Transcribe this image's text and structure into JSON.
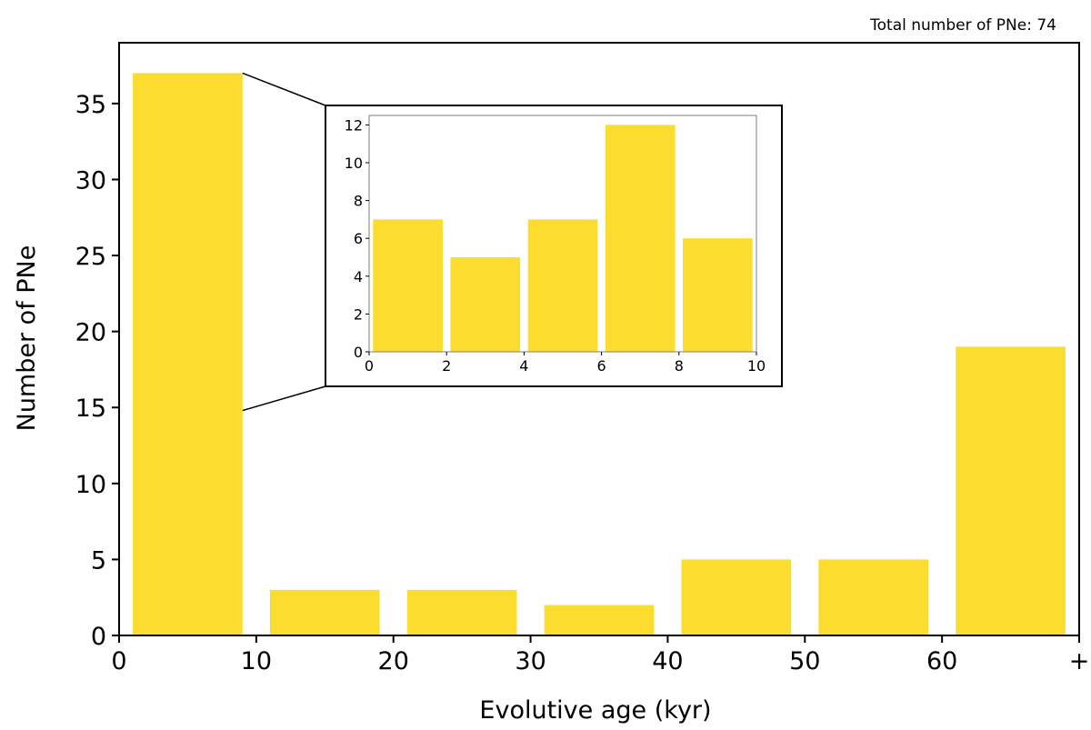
{
  "annotation": "Total number of PNe: 74",
  "chart_data": [
    {
      "type": "bar",
      "role": "main",
      "xlabel": "Evolutive age (kyr)",
      "ylabel": "Number of PNe",
      "bins": [
        {
          "x0": 0,
          "x1": 10,
          "value": 37
        },
        {
          "x0": 10,
          "x1": 20,
          "value": 3
        },
        {
          "x0": 20,
          "x1": 30,
          "value": 3
        },
        {
          "x0": 30,
          "x1": 40,
          "value": 2
        },
        {
          "x0": 40,
          "x1": 50,
          "value": 5
        },
        {
          "x0": 50,
          "x1": 60,
          "value": 5
        },
        {
          "x0": 60,
          "x1": 70,
          "value": 19
        }
      ],
      "xlim": [
        0,
        70
      ],
      "ylim": [
        0,
        39
      ],
      "xticks": [
        {
          "value": 0,
          "label": "0"
        },
        {
          "value": 10,
          "label": "10"
        },
        {
          "value": 20,
          "label": "20"
        },
        {
          "value": 30,
          "label": "30"
        },
        {
          "value": 40,
          "label": "40"
        },
        {
          "value": 50,
          "label": "50"
        },
        {
          "value": 60,
          "label": "60"
        },
        {
          "value": 70,
          "label": "+"
        }
      ],
      "yticks": [
        0,
        5,
        10,
        15,
        20,
        25,
        30,
        35
      ],
      "bar_color": "#fddc30",
      "grid": false
    },
    {
      "type": "bar",
      "role": "inset",
      "bins": [
        {
          "x0": 0,
          "x1": 2,
          "value": 7
        },
        {
          "x0": 2,
          "x1": 4,
          "value": 5
        },
        {
          "x0": 4,
          "x1": 6,
          "value": 7
        },
        {
          "x0": 6,
          "x1": 8,
          "value": 12
        },
        {
          "x0": 8,
          "x1": 10,
          "value": 6
        }
      ],
      "xlim": [
        0,
        10
      ],
      "ylim": [
        0,
        12.5
      ],
      "xticks": [
        0,
        2,
        4,
        6,
        8,
        10
      ],
      "yticks": [
        0,
        2,
        4,
        6,
        8,
        10,
        12
      ],
      "bar_color": "#fddc30",
      "grid": false
    }
  ]
}
